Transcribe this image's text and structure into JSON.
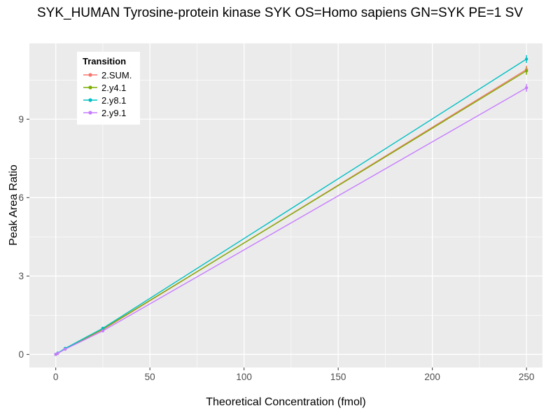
{
  "title": "SYK_HUMAN Tyrosine-protein kinase SYK OS=Homo sapiens GN=SYK PE=1 SV",
  "chart_data": {
    "type": "line",
    "title": "SYK_HUMAN Tyrosine-protein kinase SYK OS=Homo sapiens GN=SYK PE=1 SV",
    "xlabel": "Theoretical Concentration (fmol)",
    "ylabel": "Peak Area Ratio",
    "legend_title": "Transition",
    "legend_position": "top-left-inside",
    "grid": true,
    "panel_bg": "#EBEBEB",
    "grid_color": "#FFFFFF",
    "tick_label_color": "#4d4d4d",
    "x": [
      0,
      1,
      5,
      25,
      250
    ],
    "series": [
      {
        "name": "2.SUM.",
        "color": "#F8766D",
        "values": [
          0.0,
          0.04,
          0.22,
          0.95,
          10.9
        ]
      },
      {
        "name": "2.y4.1",
        "color": "#7CAE00",
        "values": [
          0.0,
          0.04,
          0.22,
          0.97,
          10.85
        ]
      },
      {
        "name": "2.y8.1",
        "color": "#00BFC4",
        "values": [
          0.0,
          0.05,
          0.23,
          1.0,
          11.3
        ]
      },
      {
        "name": "2.y9.1",
        "color": "#C77CFF",
        "values": [
          0.0,
          0.04,
          0.2,
          0.9,
          10.2
        ]
      }
    ],
    "x_ticks": [
      0,
      50,
      100,
      150,
      200,
      250
    ],
    "y_ticks": [
      0,
      3,
      6,
      9
    ],
    "xlim": [
      -14,
      258.5
    ],
    "ylim": [
      -0.5,
      11.9
    ],
    "error_bar_half": 0.15
  }
}
